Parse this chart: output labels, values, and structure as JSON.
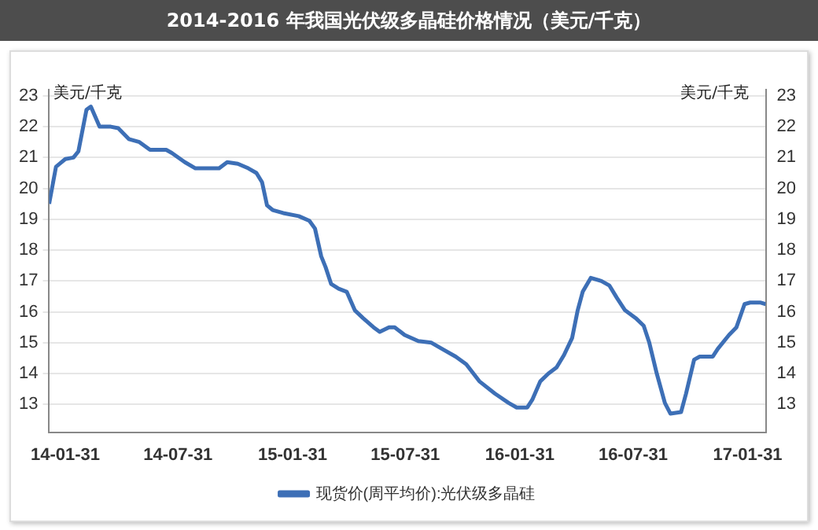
{
  "chart_data": {
    "type": "line",
    "title": "2014-2016 年我国光伏级多晶硅价格情况（美元/千克）",
    "ylabel": "美元/千克",
    "y2label": "美元/千克",
    "series": [
      {
        "name": "现货价(周平均价):光伏级多晶硅",
        "color": "#3d6fb6",
        "x": [
          "2014-01-05",
          "2014-01-16",
          "2014-01-22",
          "2014-01-31",
          "2014-02-13",
          "2014-02-21",
          "2014-03-06",
          "2014-03-13",
          "2014-03-27",
          "2014-04-14",
          "2014-04-26",
          "2014-05-13",
          "2014-05-30",
          "2014-06-16",
          "2014-07-12",
          "2014-07-21",
          "2014-08-11",
          "2014-08-28",
          "2014-10-05",
          "2014-10-18",
          "2014-11-04",
          "2014-11-21",
          "2014-12-04",
          "2014-12-13",
          "2014-12-21",
          "2014-12-30",
          "2015-01-16",
          "2015-02-10",
          "2015-02-27",
          "2015-03-08",
          "2015-03-18",
          "2015-03-25",
          "2015-04-03",
          "2015-04-15",
          "2015-04-28",
          "2015-05-11",
          "2015-05-24",
          "2015-06-10",
          "2015-06-20",
          "2015-07-05",
          "2015-07-14",
          "2015-07-30",
          "2015-08-21",
          "2015-09-11",
          "2015-09-28",
          "2015-10-20",
          "2015-11-06",
          "2015-11-27",
          "2015-12-22",
          "2016-01-13",
          "2016-01-26",
          "2016-02-12",
          "2016-02-20",
          "2016-03-04",
          "2016-03-17",
          "2016-03-30",
          "2016-04-11",
          "2016-04-24",
          "2016-05-03",
          "2016-05-11",
          "2016-05-24",
          "2016-06-10",
          "2016-06-23",
          "2016-07-05",
          "2016-07-18",
          "2016-08-04",
          "2016-08-17",
          "2016-08-26",
          "2016-09-07",
          "2016-09-20",
          "2016-09-29",
          "2016-10-16",
          "2016-10-24",
          "2016-11-06",
          "2016-11-15",
          "2016-12-06",
          "2016-12-14",
          "2017-01-01",
          "2017-01-13",
          "2017-01-26",
          "2017-02-04",
          "2017-02-21",
          "2017-03-01"
        ],
        "values": [
          19.5,
          20.7,
          20.8,
          20.95,
          21.0,
          21.2,
          22.55,
          22.65,
          22.0,
          22.0,
          21.95,
          21.6,
          21.5,
          21.25,
          21.25,
          21.15,
          20.85,
          20.65,
          20.65,
          20.85,
          20.8,
          20.65,
          20.5,
          20.2,
          19.45,
          19.3,
          19.2,
          19.1,
          18.95,
          18.7,
          17.8,
          17.45,
          16.9,
          16.75,
          16.65,
          16.05,
          15.8,
          15.5,
          15.35,
          15.5,
          15.5,
          15.25,
          15.05,
          15.0,
          14.8,
          14.55,
          14.3,
          13.75,
          13.35,
          13.05,
          12.9,
          12.9,
          13.15,
          13.75,
          14.0,
          14.2,
          14.6,
          15.15,
          16.05,
          16.65,
          17.1,
          17.0,
          16.85,
          16.45,
          16.05,
          15.8,
          15.55,
          15.0,
          14.0,
          13.05,
          12.7,
          12.75,
          13.35,
          14.45,
          14.55,
          14.55,
          14.8,
          15.25,
          15.5,
          16.25,
          16.3,
          16.3,
          16.25
        ]
      }
    ],
    "xlim": [
      "2014-01-05",
      "2017-03-01"
    ],
    "xticks": [
      {
        "value": "2014-01-31",
        "label": "14-01-31"
      },
      {
        "value": "2014-07-31",
        "label": "14-07-31"
      },
      {
        "value": "2015-01-31",
        "label": "15-01-31"
      },
      {
        "value": "2015-07-31",
        "label": "15-07-31"
      },
      {
        "value": "2016-01-31",
        "label": "16-01-31"
      },
      {
        "value": "2016-07-31",
        "label": "16-07-31"
      },
      {
        "value": "2017-01-31",
        "label": "17-01-31"
      }
    ],
    "ylim": [
      12.1,
      23.2
    ],
    "yticks": [
      13,
      14,
      15,
      16,
      17,
      18,
      19,
      20,
      21,
      22,
      23
    ],
    "y2lim": [
      12.1,
      23.2
    ],
    "y2ticks": [
      13,
      14,
      15,
      16,
      17,
      18,
      19,
      20,
      21,
      22,
      23
    ],
    "grid": "y",
    "legend": "bottom",
    "marker": "none",
    "line_style": "solid"
  }
}
